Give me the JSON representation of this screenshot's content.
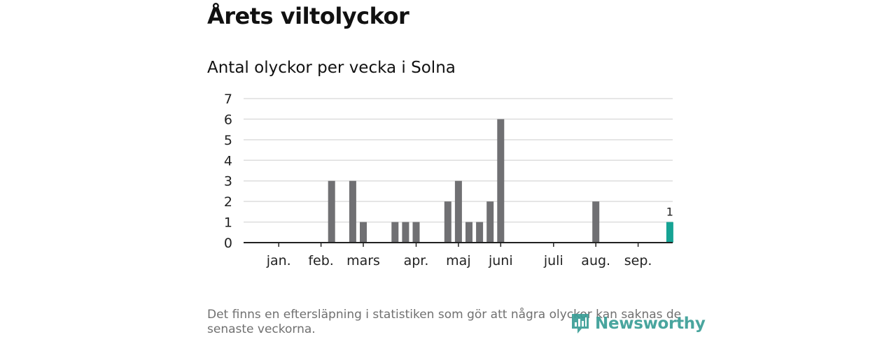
{
  "header": {
    "title": "Årets viltolyckor",
    "subtitle": "Antal olyckor per vecka i Solna"
  },
  "footnote": "Det finns en eftersläpning i statistiken som gör att några olyckor kan saknas de senaste veckorna.",
  "logo": {
    "text": "Newsworthy",
    "icon": "newsworthy-logo-icon"
  },
  "colors": {
    "bar": "#707073",
    "highlight": "#16a394",
    "grid": "#dddddd",
    "axis": "#222222"
  },
  "chart_data": {
    "type": "bar",
    "title": "Antal olyckor per vecka i Solna",
    "xlabel": "",
    "ylabel": "",
    "x": [
      1,
      2,
      3,
      4,
      5,
      6,
      7,
      8,
      9,
      10,
      11,
      12,
      13,
      14,
      15,
      16,
      17,
      18,
      19,
      20,
      21,
      22,
      23,
      24,
      25,
      26,
      27,
      28,
      29,
      30,
      31,
      32,
      33,
      34,
      35,
      36,
      37,
      38,
      39,
      40
    ],
    "values": [
      0,
      0,
      0,
      0,
      0,
      0,
      0,
      3,
      0,
      3,
      1,
      0,
      0,
      1,
      1,
      1,
      0,
      0,
      2,
      3,
      1,
      1,
      2,
      6,
      0,
      0,
      0,
      0,
      0,
      0,
      0,
      0,
      2,
      0,
      0,
      0,
      0,
      0,
      0,
      1
    ],
    "highlight_index": 39,
    "annotations": [
      {
        "index": 39,
        "text": "1"
      }
    ],
    "ylim": [
      0,
      7
    ],
    "yticks": [
      0,
      1,
      2,
      3,
      4,
      5,
      6,
      7
    ],
    "xticks": [
      {
        "label": "jan.",
        "week": 3
      },
      {
        "label": "feb.",
        "week": 7
      },
      {
        "label": "mars",
        "week": 11
      },
      {
        "label": "apr.",
        "week": 16
      },
      {
        "label": "maj",
        "week": 20
      },
      {
        "label": "juni",
        "week": 24
      },
      {
        "label": "juli",
        "week": 29
      },
      {
        "label": "aug.",
        "week": 33
      },
      {
        "label": "sep.",
        "week": 37
      }
    ],
    "grid": true,
    "legend": "none"
  }
}
